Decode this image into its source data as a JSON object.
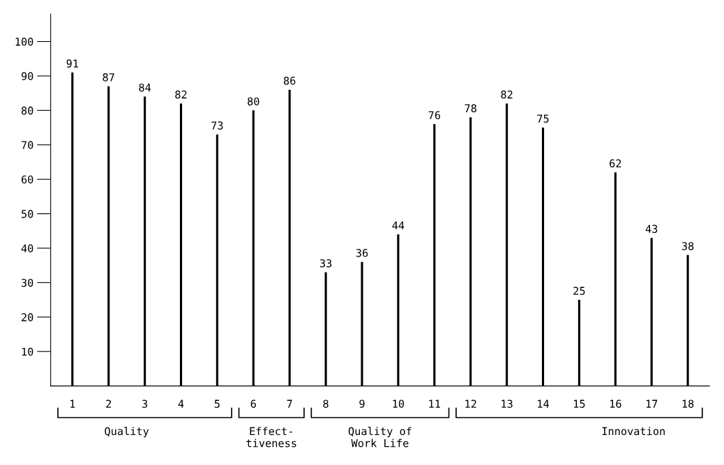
{
  "chart_data": {
    "type": "bar",
    "categories": [
      "1",
      "2",
      "3",
      "4",
      "5",
      "6",
      "7",
      "8",
      "9",
      "10",
      "11",
      "12",
      "13",
      "14",
      "15",
      "16",
      "17",
      "18"
    ],
    "values": [
      91,
      87,
      84,
      82,
      73,
      80,
      86,
      33,
      36,
      44,
      76,
      78,
      82,
      75,
      25,
      62,
      43,
      38
    ],
    "color": "#000000",
    "ylim": [
      0,
      108
    ],
    "yticks": [
      10,
      20,
      30,
      40,
      50,
      60,
      70,
      80,
      90,
      100
    ],
    "data_labels": true,
    "grid": false,
    "legend": false,
    "annotations": [
      "Quality",
      "Effect-\ntiveness",
      "Quality of\nWork Life",
      "Innovation"
    ]
  }
}
